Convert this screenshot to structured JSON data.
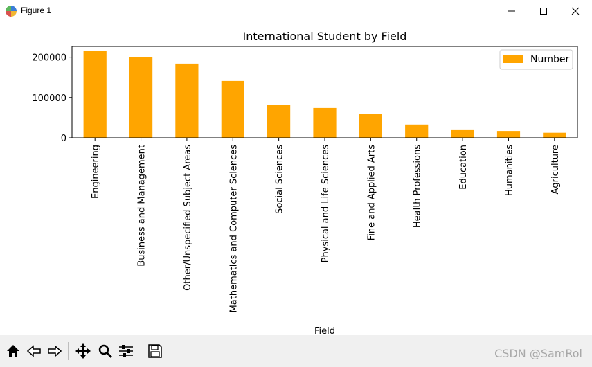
{
  "window": {
    "title": "Figure 1",
    "icon": "matplotlib-figure-icon"
  },
  "window_controls": [
    {
      "name": "minimize-button",
      "icon": "minimize-icon"
    },
    {
      "name": "maximize-button",
      "icon": "maximize-icon"
    },
    {
      "name": "close-button",
      "icon": "close-icon"
    }
  ],
  "toolbar": {
    "buttons": [
      {
        "name": "home-button",
        "icon": "home-icon"
      },
      {
        "name": "back-button",
        "icon": "back-arrow-icon"
      },
      {
        "name": "forward-button",
        "icon": "forward-arrow-icon"
      },
      {
        "name": "pan-button",
        "icon": "move-icon"
      },
      {
        "name": "zoom-button",
        "icon": "zoom-icon"
      },
      {
        "name": "configure-subplots-button",
        "icon": "sliders-icon"
      },
      {
        "name": "save-button",
        "icon": "save-icon"
      }
    ],
    "watermark": "CSDN @SamRol"
  },
  "chart_data": {
    "type": "bar",
    "title": "International Student by Field",
    "xlabel": "Field",
    "ylabel": "",
    "categories": [
      "Engineering",
      "Business and Management",
      "Other/Unspecified Subject Areas",
      "Mathematics and Computer Sciences",
      "Social Sciences",
      "Physical and Life Sciences",
      "Fine and Applied Arts",
      "Health Professions",
      "Education",
      "Humanities",
      "Agriculture"
    ],
    "series": [
      {
        "name": "Number",
        "color": "#ffa500",
        "values": [
          216000,
          200000,
          184000,
          141000,
          81000,
          74000,
          59000,
          33000,
          19000,
          17000,
          12500
        ]
      }
    ],
    "yticks": [
      0,
      100000,
      200000
    ],
    "ytick_labels": [
      "0",
      "100000",
      "200000"
    ],
    "ylim": [
      0,
      226800
    ],
    "grid": false,
    "legend_position": "upper right"
  }
}
